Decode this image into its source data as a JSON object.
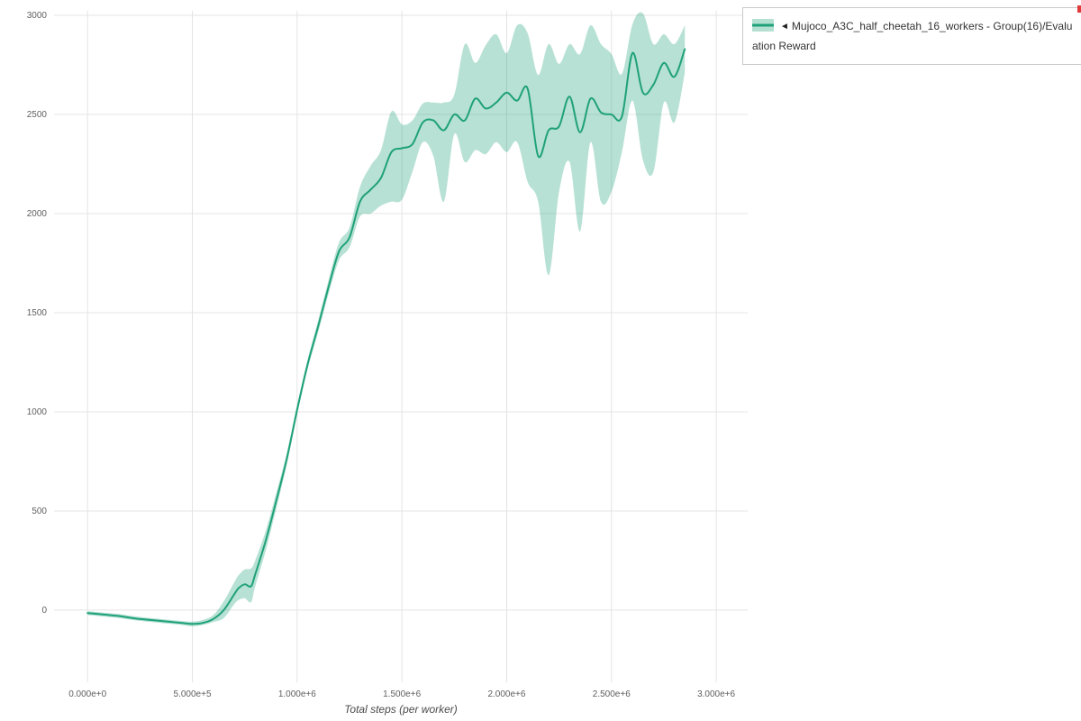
{
  "legend": {
    "marker": "◄",
    "label": "Mujoco_A3C_half_cheetah_16_workers - Group(16)/Evaluation Reward"
  },
  "chart_data": {
    "type": "line",
    "title": "",
    "xlabel": "Total steps (per worker)",
    "ylabel": "",
    "grid": true,
    "legend_position": "top-right-outside",
    "xlim_millions": [
      -0.16,
      3.15
    ],
    "ylim": [
      -364,
      3023
    ],
    "x_ticks": {
      "values_millions": [
        0,
        0.5,
        1.0,
        1.5,
        2.0,
        2.5,
        3.0
      ],
      "labels": [
        "0.000e+0",
        "5.000e+5",
        "1.000e+6",
        "1.500e+6",
        "2.000e+6",
        "2.500e+6",
        "3.000e+6"
      ]
    },
    "y_ticks": {
      "values": [
        0,
        500,
        1000,
        1500,
        2000,
        2500,
        3000
      ],
      "labels": [
        "0",
        "500",
        "1000",
        "1500",
        "2000",
        "2500",
        "3000"
      ]
    },
    "grid_color": "#e4e4e4",
    "series": [
      {
        "name": "Mujoco_A3C_half_cheetah_16_workers - Group(16)/Evaluation Reward",
        "type": "line-with-band",
        "line_color": "#1fa179",
        "band_color": "#1fa179",
        "band_opacity": 0.32,
        "x_millions": [
          0.0,
          0.05,
          0.1,
          0.15,
          0.2,
          0.25,
          0.3,
          0.35,
          0.4,
          0.45,
          0.5,
          0.55,
          0.6,
          0.65,
          0.7,
          0.72,
          0.75,
          0.78,
          0.8,
          0.85,
          0.9,
          0.95,
          1.0,
          1.05,
          1.1,
          1.15,
          1.2,
          1.25,
          1.3,
          1.35,
          1.4,
          1.45,
          1.5,
          1.55,
          1.6,
          1.65,
          1.7,
          1.75,
          1.8,
          1.85,
          1.9,
          1.95,
          2.0,
          2.05,
          2.1,
          2.15,
          2.2,
          2.25,
          2.3,
          2.35,
          2.4,
          2.45,
          2.5,
          2.55,
          2.6,
          2.65,
          2.7,
          2.75,
          2.8,
          2.85
        ],
        "mean": [
          -15,
          -20,
          -25,
          -30,
          -38,
          -45,
          -50,
          -55,
          -60,
          -65,
          -70,
          -65,
          -45,
          0,
          80,
          110,
          130,
          120,
          180,
          350,
          550,
          760,
          1010,
          1240,
          1430,
          1630,
          1810,
          1880,
          2060,
          2120,
          2180,
          2310,
          2330,
          2350,
          2460,
          2470,
          2420,
          2500,
          2470,
          2580,
          2530,
          2560,
          2610,
          2570,
          2630,
          2290,
          2420,
          2440,
          2590,
          2410,
          2580,
          2510,
          2500,
          2490,
          2810,
          2610,
          2650,
          2760,
          2690,
          2830
        ],
        "lower": [
          -25,
          -30,
          -35,
          -40,
          -48,
          -55,
          -60,
          -65,
          -70,
          -75,
          -82,
          -75,
          -60,
          -40,
          30,
          50,
          60,
          40,
          120,
          300,
          510,
          730,
          985,
          1215,
          1400,
          1595,
          1765,
          1830,
          1985,
          2000,
          2040,
          2060,
          2070,
          2210,
          2360,
          2290,
          2060,
          2400,
          2260,
          2320,
          2300,
          2360,
          2310,
          2360,
          2160,
          2060,
          1690,
          2110,
          2260,
          1910,
          2360,
          2060,
          2110,
          2310,
          2570,
          2270,
          2210,
          2560,
          2460,
          2710
        ],
        "upper": [
          -5,
          -10,
          -15,
          -20,
          -28,
          -35,
          -40,
          -45,
          -50,
          -55,
          -58,
          -50,
          -25,
          45,
          140,
          175,
          205,
          210,
          250,
          400,
          590,
          790,
          1035,
          1265,
          1460,
          1665,
          1855,
          1930,
          2135,
          2240,
          2320,
          2515,
          2450,
          2470,
          2555,
          2560,
          2560,
          2600,
          2855,
          2760,
          2850,
          2905,
          2810,
          2950,
          2910,
          2700,
          2855,
          2755,
          2855,
          2805,
          2950,
          2855,
          2805,
          2705,
          2955,
          3010,
          2855,
          2905,
          2855,
          2950
        ]
      }
    ]
  }
}
